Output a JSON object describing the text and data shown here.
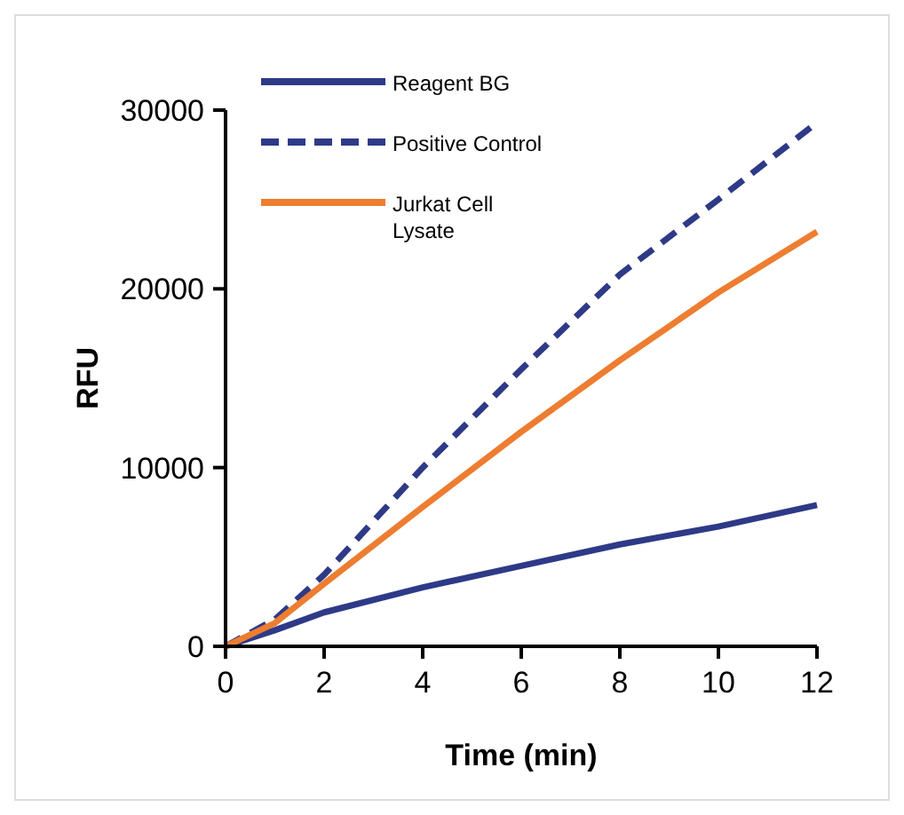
{
  "chart_data": {
    "type": "line",
    "xlabel": "Time (min)",
    "ylabel": "RFU",
    "x": [
      0,
      1,
      2,
      4,
      6,
      8,
      10,
      12
    ],
    "xlim": [
      0,
      12
    ],
    "xticks": [
      0,
      2,
      4,
      6,
      8,
      10,
      12
    ],
    "ylim": [
      0,
      30000
    ],
    "yticks": [
      0,
      10000,
      20000,
      30000
    ],
    "grid": false,
    "legend": "top left",
    "marker": "none",
    "series": [
      {
        "name": "Reagent BG",
        "color": "#2e3a87",
        "line_style": "solid",
        "values": [
          0,
          900,
          1900,
          3300,
          4500,
          5700,
          6700,
          7900
        ]
      },
      {
        "name": "Positive Control",
        "color": "#2e3a87",
        "line_style": "dashed",
        "values": [
          0,
          1500,
          4000,
          10000,
          15500,
          20800,
          25000,
          29300
        ]
      },
      {
        "name": "Jurkat Cell Lysate",
        "color": "#ed7d31",
        "line_style": "solid",
        "values": [
          0,
          1300,
          3500,
          7800,
          12000,
          16000,
          19800,
          23200
        ]
      }
    ]
  }
}
